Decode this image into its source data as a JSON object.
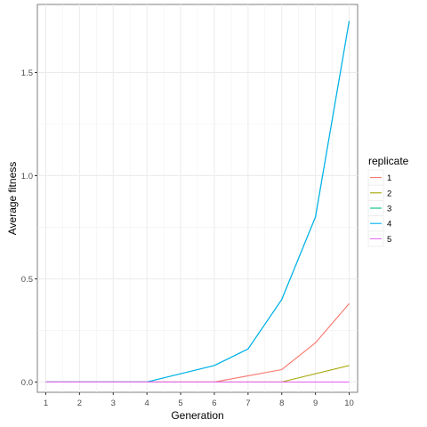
{
  "chart_data": {
    "type": "line",
    "xlabel": "Generation",
    "ylabel": "Average fitness",
    "x": [
      1,
      2,
      3,
      4,
      5,
      6,
      7,
      8,
      9,
      10
    ],
    "x_ticks": [
      "1",
      "2",
      "3",
      "4",
      "5",
      "6",
      "7",
      "8",
      "9",
      "10"
    ],
    "y_ticks": [
      "0.0",
      "0.5",
      "1.0",
      "1.5"
    ],
    "y_tick_values": [
      0.0,
      0.5,
      1.0,
      1.5
    ],
    "xlim": [
      0.75,
      10.25
    ],
    "ylim": [
      -0.05,
      1.83
    ],
    "grid": true,
    "legend": {
      "title": "replicate",
      "placement": "right"
    },
    "series": [
      {
        "name": "1",
        "color": "#F8766D",
        "values": [
          0,
          0,
          0,
          0,
          0,
          0,
          0.03,
          0.06,
          0.19,
          0.38
        ]
      },
      {
        "name": "2",
        "color": "#A3A500",
        "values": [
          0,
          0,
          0,
          0,
          0,
          0,
          0,
          0,
          0.04,
          0.08
        ]
      },
      {
        "name": "3",
        "color": "#00BF7D",
        "values": [
          0,
          0,
          0,
          0,
          0.04,
          0.08,
          0.16,
          0.4,
          0.8,
          1.75
        ]
      },
      {
        "name": "4",
        "color": "#00B0F6",
        "values": [
          0,
          0,
          0,
          0,
          0.04,
          0.08,
          0.16,
          0.4,
          0.8,
          1.75
        ]
      },
      {
        "name": "5",
        "color": "#E76BF3",
        "values": [
          0,
          0,
          0,
          0,
          0,
          0,
          0,
          0,
          0,
          0
        ]
      }
    ]
  }
}
